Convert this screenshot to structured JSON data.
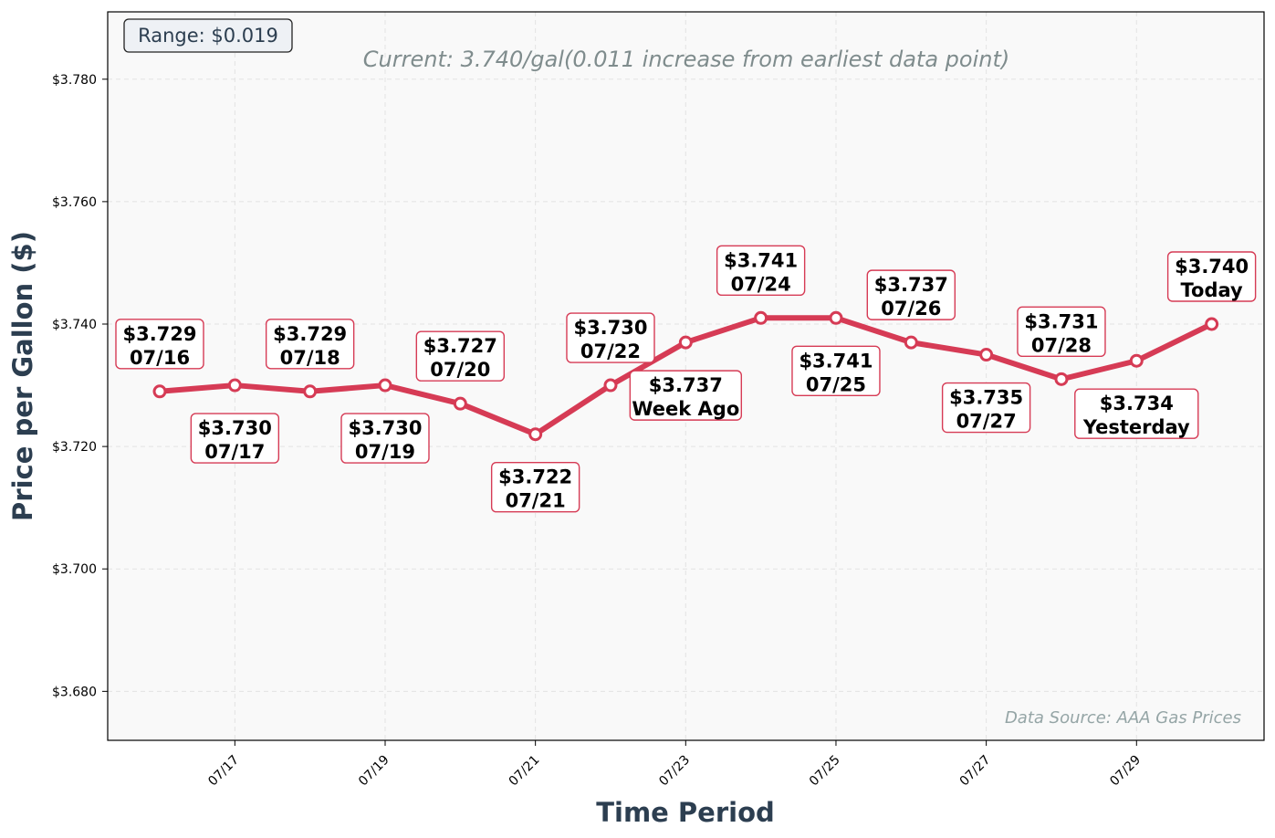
{
  "chart_data": {
    "type": "line",
    "title": "Current: 3.740/gal(0.011 increase from earliest data point)",
    "xlabel": "Time Period",
    "ylabel": "Price per Gallon ($)",
    "range_label": "Range: $0.019",
    "source_label": "Data Source: AAA Gas Prices",
    "ylim": [
      3.672,
      3.791
    ],
    "y_ticks": [
      3.68,
      3.7,
      3.72,
      3.74,
      3.76,
      3.78
    ],
    "y_tick_labels": [
      "$3.680",
      "$3.700",
      "$3.720",
      "$3.740",
      "$3.760",
      "$3.780"
    ],
    "x_tick_labels": [
      "07/17",
      "07/19",
      "07/21",
      "07/23",
      "07/25",
      "07/27",
      "07/29"
    ],
    "grid": true,
    "series": [
      {
        "values": [
          3.729,
          3.73,
          3.729,
          3.73,
          3.727,
          3.722,
          3.73,
          3.737,
          3.741,
          3.741,
          3.737,
          3.735,
          3.731,
          3.734,
          3.74
        ]
      }
    ],
    "annotations": [
      {
        "price": "$3.729",
        "date": "07/16",
        "pos": "above"
      },
      {
        "price": "$3.730",
        "date": "07/17",
        "pos": "below"
      },
      {
        "price": "$3.729",
        "date": "07/18",
        "pos": "above"
      },
      {
        "price": "$3.730",
        "date": "07/19",
        "pos": "below"
      },
      {
        "price": "$3.727",
        "date": "07/20",
        "pos": "above"
      },
      {
        "price": "$3.722",
        "date": "07/21",
        "pos": "below"
      },
      {
        "price": "$3.730",
        "date": "07/22",
        "pos": "above"
      },
      {
        "price": "$3.737",
        "date": "Week Ago",
        "pos": "below"
      },
      {
        "price": "$3.741",
        "date": "07/24",
        "pos": "above"
      },
      {
        "price": "$3.741",
        "date": "07/25",
        "pos": "below"
      },
      {
        "price": "$3.737",
        "date": "07/26",
        "pos": "above"
      },
      {
        "price": "$3.735",
        "date": "07/27",
        "pos": "below"
      },
      {
        "price": "$3.731",
        "date": "07/28",
        "pos": "above"
      },
      {
        "price": "$3.734",
        "date": "Yesterday",
        "pos": "below"
      },
      {
        "price": "$3.740",
        "date": "Today",
        "pos": "above"
      }
    ],
    "colors": {
      "line": "#d63b55",
      "marker_fill": "#ffffff",
      "plot_bg": "#f9f9f9",
      "axis_label": "#2c3e50",
      "title": "#7f8c8d",
      "source": "#95a5a6",
      "range_box_bg": "#eef1f5"
    }
  }
}
